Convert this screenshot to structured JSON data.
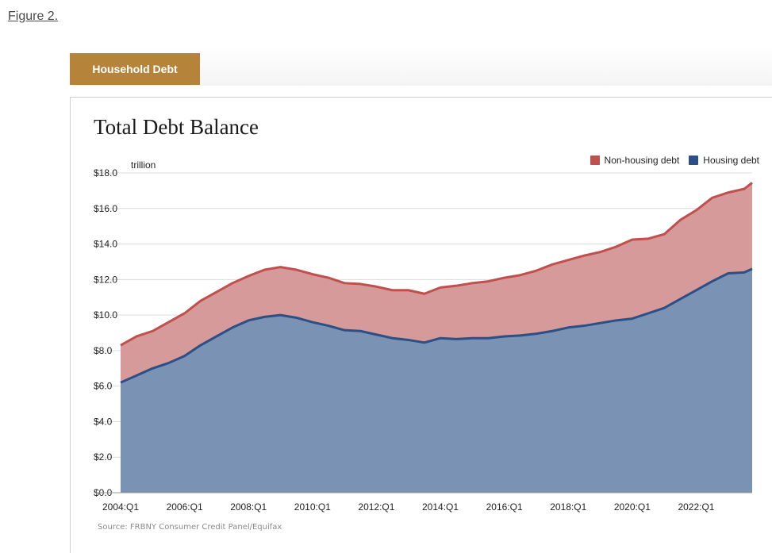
{
  "figure_link": "Figure 2.",
  "tab_label": "Household Debt",
  "source": "Source: FRBNY Consumer Credit Panel/Equifax",
  "chart_data": {
    "type": "area",
    "title": "Total Debt Balance",
    "unit_label": "trillion",
    "stacked": true,
    "ylim": [
      0,
      18
    ],
    "yticks": [
      0,
      2,
      4,
      6,
      8,
      10,
      12,
      14,
      16,
      18
    ],
    "ytick_labels": [
      "$0.0",
      "$2.0",
      "$4.0",
      "$6.0",
      "$8.0",
      "$10.0",
      "$12.0",
      "$14.0",
      "$16.0",
      "$18.0"
    ],
    "xtick_labels": [
      "2004:Q1",
      "2006:Q1",
      "2008:Q1",
      "2010:Q1",
      "2012:Q1",
      "2014:Q1",
      "2016:Q1",
      "2018:Q1",
      "2020:Q1",
      "2022:Q1"
    ],
    "xtick_years": [
      2004,
      2006,
      2008,
      2010,
      2012,
      2014,
      2016,
      2018,
      2020,
      2022
    ],
    "x_start": 2004,
    "x_end": 2023.75,
    "legend_position": "top-right",
    "grid": true,
    "series": [
      {
        "name": "Housing debt",
        "color": "#2c4f85",
        "fill": "#7a92b3",
        "x": [
          2004.0,
          2004.5,
          2005.0,
          2005.5,
          2006.0,
          2006.5,
          2007.0,
          2007.5,
          2008.0,
          2008.5,
          2009.0,
          2009.5,
          2010.0,
          2010.5,
          2011.0,
          2011.5,
          2012.0,
          2012.5,
          2013.0,
          2013.5,
          2014.0,
          2014.5,
          2015.0,
          2015.5,
          2016.0,
          2016.5,
          2017.0,
          2017.5,
          2018.0,
          2018.5,
          2019.0,
          2019.5,
          2020.0,
          2020.5,
          2021.0,
          2021.5,
          2022.0,
          2022.5,
          2023.0,
          2023.5,
          2023.75
        ],
        "values": [
          6.2,
          6.6,
          7.0,
          7.3,
          7.7,
          8.3,
          8.8,
          9.3,
          9.7,
          9.9,
          10.0,
          9.85,
          9.6,
          9.4,
          9.15,
          9.1,
          8.9,
          8.7,
          8.6,
          8.45,
          8.7,
          8.65,
          8.7,
          8.7,
          8.8,
          8.85,
          8.95,
          9.1,
          9.3,
          9.4,
          9.55,
          9.7,
          9.8,
          10.1,
          10.4,
          10.9,
          11.4,
          11.9,
          12.35,
          12.4,
          12.6
        ]
      },
      {
        "name": "Non-housing debt",
        "color": "#c0504d",
        "fill": "#d59a99",
        "x": [
          2004.0,
          2004.5,
          2005.0,
          2005.5,
          2006.0,
          2006.5,
          2007.0,
          2007.5,
          2008.0,
          2008.5,
          2009.0,
          2009.5,
          2010.0,
          2010.5,
          2011.0,
          2011.5,
          2012.0,
          2012.5,
          2013.0,
          2013.5,
          2014.0,
          2014.5,
          2015.0,
          2015.5,
          2016.0,
          2016.5,
          2017.0,
          2017.5,
          2018.0,
          2018.5,
          2019.0,
          2019.5,
          2020.0,
          2020.5,
          2021.0,
          2021.5,
          2022.0,
          2022.5,
          2023.0,
          2023.5,
          2023.75
        ],
        "values": [
          2.1,
          2.2,
          2.1,
          2.3,
          2.4,
          2.5,
          2.5,
          2.5,
          2.5,
          2.65,
          2.7,
          2.7,
          2.7,
          2.7,
          2.65,
          2.65,
          2.7,
          2.7,
          2.8,
          2.75,
          2.85,
          3.0,
          3.1,
          3.2,
          3.3,
          3.4,
          3.55,
          3.75,
          3.8,
          3.95,
          4.0,
          4.15,
          4.45,
          4.2,
          4.15,
          4.45,
          4.5,
          4.7,
          4.55,
          4.7,
          4.85
        ]
      }
    ]
  }
}
